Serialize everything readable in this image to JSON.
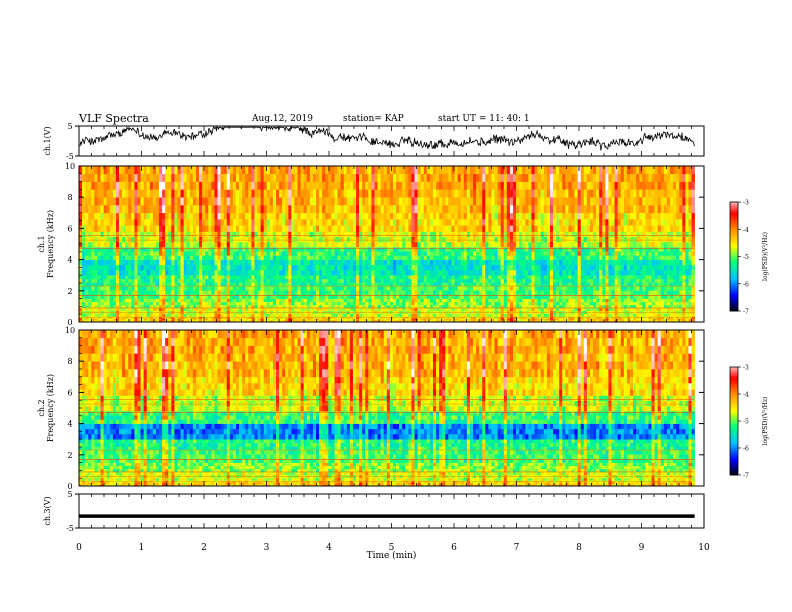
{
  "header": {
    "title": "VLF Spectra",
    "date": "Aug.12, 2019",
    "station": "station= KAP",
    "start_ut": "start  UT =   11: 40: 1"
  },
  "chart_data": [
    {
      "type": "line",
      "panel": "ch1-waveform",
      "ylabel": "ch.1(V)",
      "ylim": [
        -5,
        5
      ],
      "yticks": [
        "5",
        "-5"
      ],
      "xlim": [
        0,
        9.85
      ],
      "trace_color": "#000000",
      "trace_level_approx": 0.5
    },
    {
      "type": "heatmap",
      "panel": "ch1-spectrogram",
      "ylabel_top": "ch.1",
      "ylabel": "Frequency (kHz)",
      "ylim": [
        0,
        10
      ],
      "yticks": [
        "0",
        "2",
        "4",
        "6",
        "8",
        "10"
      ],
      "xlim": [
        0,
        9.85
      ],
      "colorbar": {
        "label": "log(PSD)(V²/Hz)",
        "range": [
          -7,
          -3
        ],
        "ticks": [
          "-3",
          "-4",
          "-5",
          "-6",
          "-7"
        ]
      }
    },
    {
      "type": "heatmap",
      "panel": "ch2-spectrogram",
      "ylabel_top": "ch.2",
      "ylabel": "Frequency (kHz)",
      "ylim": [
        0,
        10
      ],
      "yticks": [
        "0",
        "2",
        "4",
        "6",
        "8",
        "10"
      ],
      "xlim": [
        0,
        9.85
      ],
      "colorbar": {
        "label": "log(PSD)(V²/Hz)",
        "range": [
          -7,
          -3
        ],
        "ticks": [
          "-3",
          "-4",
          "-5",
          "-6",
          "-7"
        ]
      }
    },
    {
      "type": "line",
      "panel": "ch3-waveform",
      "ylabel": "ch.3(V)",
      "ylim": [
        -5,
        5
      ],
      "yticks": [
        "5",
        "-5"
      ],
      "xlim": [
        0,
        9.85
      ],
      "trace_value": -1.5,
      "xlabel": "Time (min)",
      "xticks": [
        "0",
        "1",
        "2",
        "3",
        "4",
        "5",
        "6",
        "7",
        "8",
        "9",
        "10"
      ]
    }
  ],
  "colors": {
    "colormap": [
      "#000000",
      "#0000ff",
      "#00c0ff",
      "#00ff80",
      "#ffff00",
      "#ff9000",
      "#ff0000",
      "#ffffff"
    ]
  }
}
